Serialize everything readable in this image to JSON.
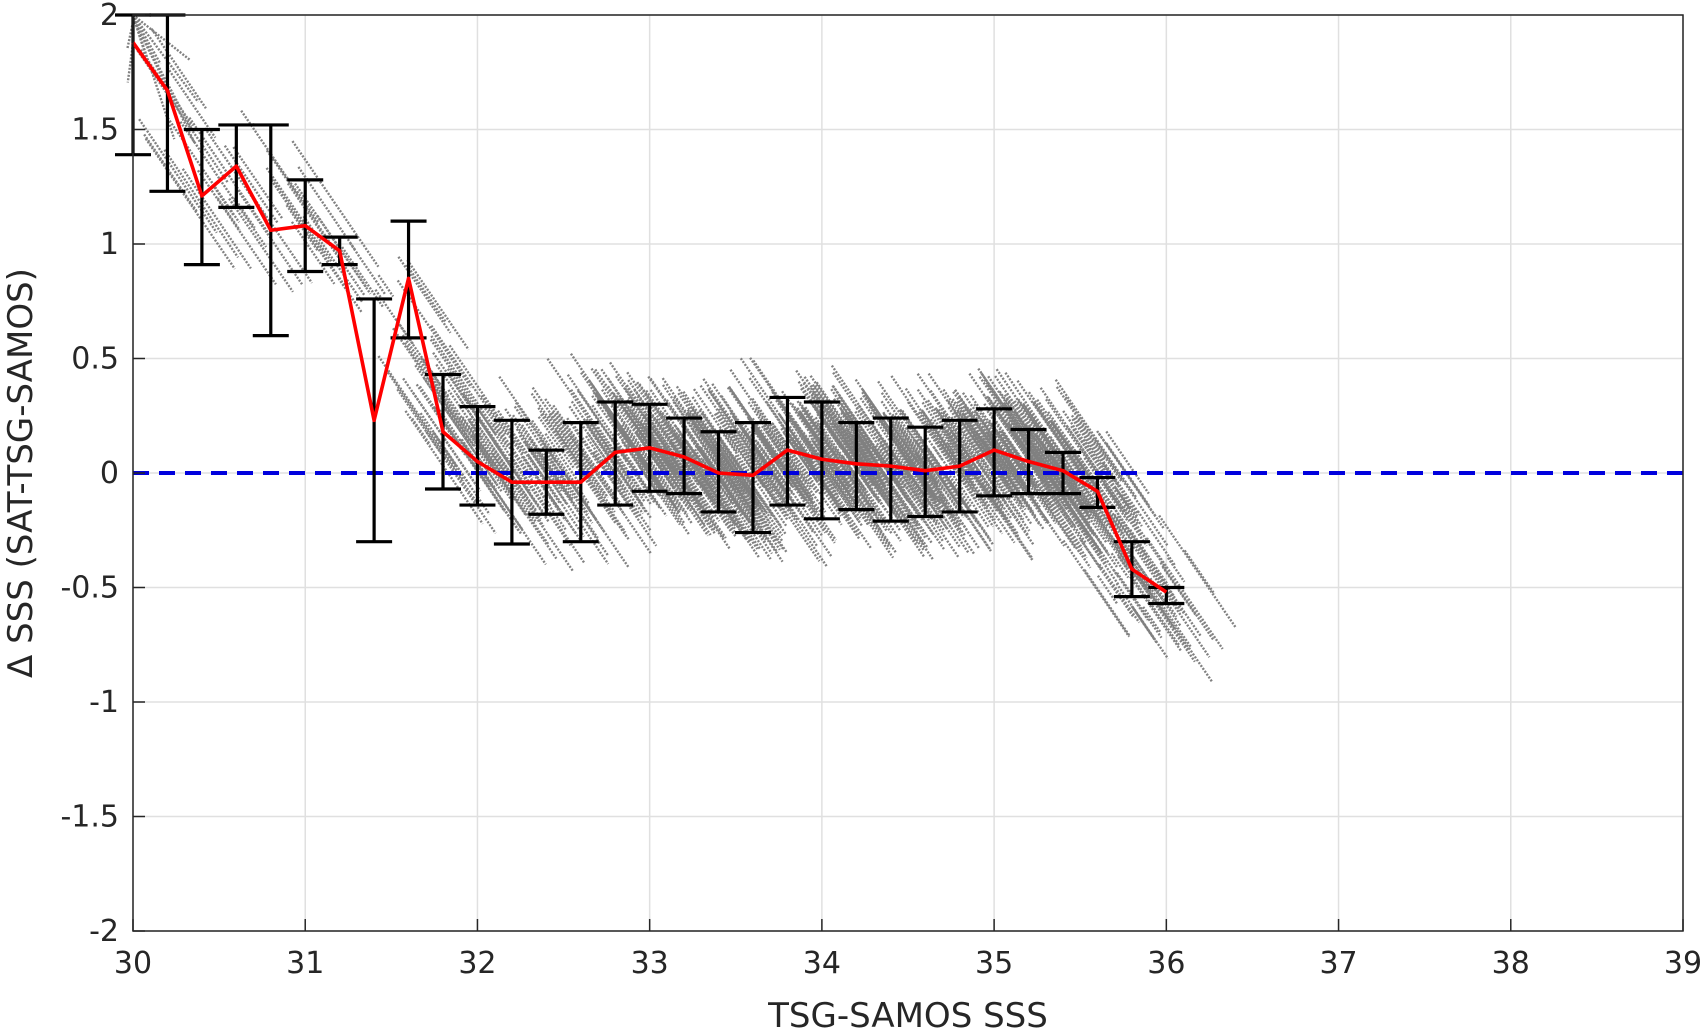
{
  "chart_data": {
    "type": "scatter",
    "xlabel": "TSG-SAMOS SSS",
    "ylabel": "Δ SSS (SAT-TSG-SAMOS)",
    "xlim": [
      30,
      39
    ],
    "ylim": [
      -2,
      2
    ],
    "xticks": [
      "30",
      "31",
      "32",
      "33",
      "34",
      "35",
      "36",
      "37",
      "38",
      "39"
    ],
    "yticks": [
      "2",
      "1.5",
      "1",
      "0.5",
      "0",
      "-0.5",
      "-1",
      "-1.5",
      "-2"
    ],
    "grid": true,
    "colors": {
      "scatter": "#808080",
      "mean_line": "#ff0000",
      "error_bars": "#000000",
      "zero_line": "#0000dd",
      "grid": "#e0e0e0",
      "axes": "#262626"
    },
    "reference_line": {
      "y": 0,
      "style": "dashed"
    },
    "series": [
      {
        "kind": "mean_with_error_bars",
        "x": [
          30.0,
          30.2,
          30.4,
          30.6,
          30.8,
          31.0,
          31.2,
          31.4,
          31.6,
          31.8,
          32.0,
          32.2,
          32.4,
          32.6,
          32.8,
          33.0,
          33.2,
          33.4,
          33.6,
          33.8,
          34.0,
          34.2,
          34.4,
          34.6,
          34.8,
          35.0,
          35.2,
          35.4,
          35.6,
          35.8,
          36.0
        ],
        "y": [
          1.88,
          1.67,
          1.21,
          1.34,
          1.06,
          1.08,
          0.97,
          0.23,
          0.85,
          0.18,
          0.05,
          -0.04,
          -0.04,
          -0.04,
          0.09,
          0.11,
          0.07,
          0.0,
          -0.01,
          0.1,
          0.06,
          0.04,
          0.03,
          0.01,
          0.03,
          0.1,
          0.05,
          0.01,
          -0.08,
          -0.42,
          -0.52
        ],
        "lower": [
          1.39,
          1.23,
          0.91,
          1.16,
          0.6,
          0.88,
          0.91,
          -0.3,
          0.59,
          -0.07,
          -0.14,
          -0.31,
          -0.18,
          -0.3,
          -0.14,
          -0.08,
          -0.09,
          -0.17,
          -0.26,
          -0.14,
          -0.2,
          -0.16,
          -0.21,
          -0.19,
          -0.17,
          -0.1,
          -0.09,
          -0.09,
          -0.15,
          -0.54,
          -0.57
        ],
        "upper": [
          2.0,
          2.0,
          1.5,
          1.52,
          1.52,
          1.28,
          1.03,
          0.76,
          1.1,
          0.43,
          0.29,
          0.23,
          0.1,
          0.22,
          0.31,
          0.3,
          0.24,
          0.18,
          0.22,
          0.33,
          0.31,
          0.22,
          0.24,
          0.2,
          0.23,
          0.28,
          0.19,
          0.09,
          -0.02,
          -0.3,
          -0.5
        ]
      }
    ],
    "scatter_clusters": [
      {
        "x": 30.0,
        "y": 1.9
      },
      {
        "x": 30.2,
        "y": 1.67
      },
      {
        "x": 30.4,
        "y": 1.21
      },
      {
        "x": 30.6,
        "y": 1.34
      },
      {
        "x": 30.8,
        "y": 1.06
      },
      {
        "x": 31.0,
        "y": 1.08
      },
      {
        "x": 31.2,
        "y": 0.97
      },
      {
        "x": 31.6,
        "y": 0.7
      },
      {
        "x": 31.8,
        "y": 0.3
      },
      {
        "x": 32.0,
        "y": 0.1
      },
      {
        "x": 32.2,
        "y": 0.0
      },
      {
        "x": 32.4,
        "y": -0.02
      },
      {
        "x": 32.6,
        "y": 0.0
      },
      {
        "x": 32.8,
        "y": 0.09
      },
      {
        "x": 33.0,
        "y": 0.11
      },
      {
        "x": 33.2,
        "y": 0.07
      },
      {
        "x": 33.4,
        "y": 0.0
      },
      {
        "x": 33.6,
        "y": 0.0
      },
      {
        "x": 33.8,
        "y": 0.1
      },
      {
        "x": 34.0,
        "y": 0.06
      },
      {
        "x": 34.2,
        "y": 0.04
      },
      {
        "x": 34.4,
        "y": 0.03
      },
      {
        "x": 34.6,
        "y": 0.01
      },
      {
        "x": 34.8,
        "y": 0.03
      },
      {
        "x": 35.0,
        "y": 0.1
      },
      {
        "x": 35.2,
        "y": 0.05
      },
      {
        "x": 35.4,
        "y": 0.01
      },
      {
        "x": 35.6,
        "y": -0.08
      },
      {
        "x": 35.8,
        "y": -0.42
      },
      {
        "x": 36.0,
        "y": -0.52
      }
    ]
  }
}
